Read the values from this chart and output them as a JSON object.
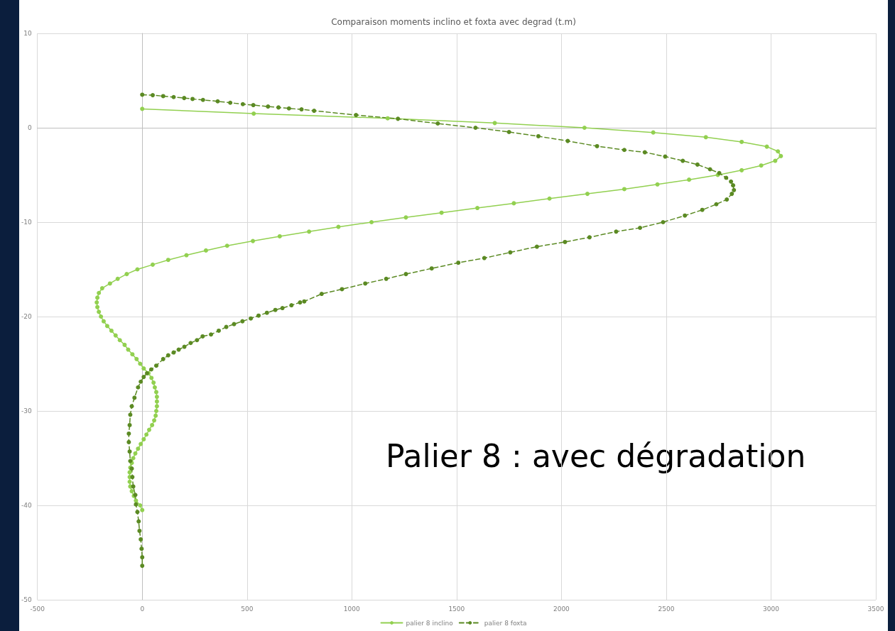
{
  "chart_data": {
    "type": "line",
    "title": "Comparaison moments inclino et foxta avec degrad (t.m)",
    "xlim": [
      -500,
      3500
    ],
    "xticks": [
      -500,
      0,
      500,
      1000,
      1500,
      2000,
      2500,
      3000,
      3500
    ],
    "ylim": [
      -50,
      10
    ],
    "yticks": [
      -50,
      -40,
      -30,
      -20,
      -10,
      0,
      10
    ],
    "grid": true,
    "legend": "bottom",
    "marker": "circle",
    "annotations": [
      "Palier 8 : avec dégradation"
    ],
    "series": [
      {
        "name": "palier 8 inclino",
        "color": "#92d050",
        "line_style": "solid",
        "x": [
          0,
          532,
          1171,
          1682,
          2110,
          2438,
          2689,
          2860,
          2980,
          3033,
          3047,
          3020,
          2953,
          2860,
          2746,
          2609,
          2458,
          2300,
          2124,
          1943,
          1773,
          1599,
          1428,
          1258,
          1094,
          936,
          796,
          656,
          528,
          405,
          304,
          211,
          124,
          50,
          -23,
          -74,
          -117,
          -154,
          -191,
          -207,
          -214,
          -217,
          -214,
          -207,
          -197,
          -184,
          -167,
          -147,
          -127,
          -107,
          -84,
          -67,
          -47,
          -27,
          -10,
          7,
          30,
          44,
          54,
          60,
          67,
          70,
          70,
          70,
          67,
          64,
          57,
          47,
          33,
          20,
          7,
          -7,
          -20,
          -33,
          -43,
          -50,
          -57,
          -60,
          -60,
          -60,
          -57,
          -50,
          -40,
          -30,
          -10,
          0
        ],
        "values": [
          2,
          1.5,
          1,
          0.5,
          0,
          -0.5,
          -1,
          -1.5,
          -2,
          -2.5,
          -3,
          -3.5,
          -4,
          -4.5,
          -5,
          -5.5,
          -6,
          -6.5,
          -7,
          -7.5,
          -8,
          -8.5,
          -9,
          -9.5,
          -10,
          -10.5,
          -11,
          -11.5,
          -12,
          -12.5,
          -13,
          -13.5,
          -14,
          -14.5,
          -15,
          -15.5,
          -16,
          -16.5,
          -17,
          -17.5,
          -18,
          -18.5,
          -19,
          -19.5,
          -20,
          -20.5,
          -21,
          -21.5,
          -22,
          -22.5,
          -23,
          -23.5,
          -24,
          -24.5,
          -25,
          -25.5,
          -26,
          -26.5,
          -27,
          -27.5,
          -28,
          -28.5,
          -29,
          -29.5,
          -30,
          -30.5,
          -31,
          -31.5,
          -32,
          -32.5,
          -33,
          -33.5,
          -34,
          -34.5,
          -35,
          -35.5,
          -36,
          -36.5,
          -37,
          -37.5,
          -38,
          -38.5,
          -39,
          -39.5,
          -40,
          -40.5
        ]
      },
      {
        "name": "palier 8 foxta",
        "color": "#5b8a23",
        "line_style": "dashed",
        "x": [
          0,
          50,
          100,
          150,
          200,
          240,
          290,
          360,
          420,
          480,
          530,
          600,
          650,
          700,
          760,
          820,
          1020,
          1220,
          1410,
          1590,
          1750,
          1890,
          2030,
          2170,
          2300,
          2398,
          2495,
          2579,
          2649,
          2709,
          2753,
          2786,
          2809,
          2819,
          2823,
          2813,
          2789,
          2739,
          2672,
          2589,
          2485,
          2375,
          2261,
          2134,
          2017,
          1883,
          1756,
          1632,
          1508,
          1381,
          1258,
          1164,
          1064,
          953,
          856,
          773,
          753,
          712,
          669,
          635,
          595,
          555,
          518,
          478,
          438,
          401,
          365,
          328,
          288,
          261,
          231,
          201,
          174,
          150,
          124,
          100,
          67,
          43,
          23,
          7,
          -7,
          -20,
          -37,
          -50,
          -57,
          -60,
          -64,
          -64,
          -60,
          -57,
          -50,
          -47,
          -43,
          -33,
          -30,
          -23,
          -17,
          -13,
          -7,
          -3,
          0,
          0
        ],
        "values": [
          3.5,
          3.45,
          3.35,
          3.25,
          3.15,
          3.05,
          2.95,
          2.8,
          2.65,
          2.5,
          2.4,
          2.25,
          2.15,
          2.05,
          1.95,
          1.8,
          1.35,
          0.95,
          0.45,
          0,
          -0.45,
          -0.9,
          -1.4,
          -1.95,
          -2.35,
          -2.6,
          -3.05,
          -3.5,
          -3.9,
          -4.4,
          -4.8,
          -5.3,
          -5.7,
          -6.1,
          -6.6,
          -7,
          -7.6,
          -8.1,
          -8.7,
          -9.3,
          -10,
          -10.6,
          -11,
          -11.6,
          -12.1,
          -12.6,
          -13.2,
          -13.8,
          -14.3,
          -14.9,
          -15.5,
          -16,
          -16.5,
          -17.1,
          -17.6,
          -18.4,
          -18.5,
          -18.8,
          -19.1,
          -19.3,
          -19.6,
          -19.9,
          -20.2,
          -20.5,
          -20.8,
          -21.1,
          -21.5,
          -21.9,
          -22.1,
          -22.5,
          -22.8,
          -23.2,
          -23.5,
          -23.8,
          -24.1,
          -24.5,
          -25.2,
          -25.6,
          -26,
          -26.4,
          -26.9,
          -27.5,
          -28.6,
          -29.5,
          -30.4,
          -31.5,
          -32.4,
          -33.3,
          -34.3,
          -35.3,
          -36.1,
          -37,
          -38,
          -38.9,
          -39.9,
          -40.7,
          -41.7,
          -42.7,
          -43.6,
          -44.6,
          -45.5,
          -46.4
        ]
      }
    ]
  }
}
